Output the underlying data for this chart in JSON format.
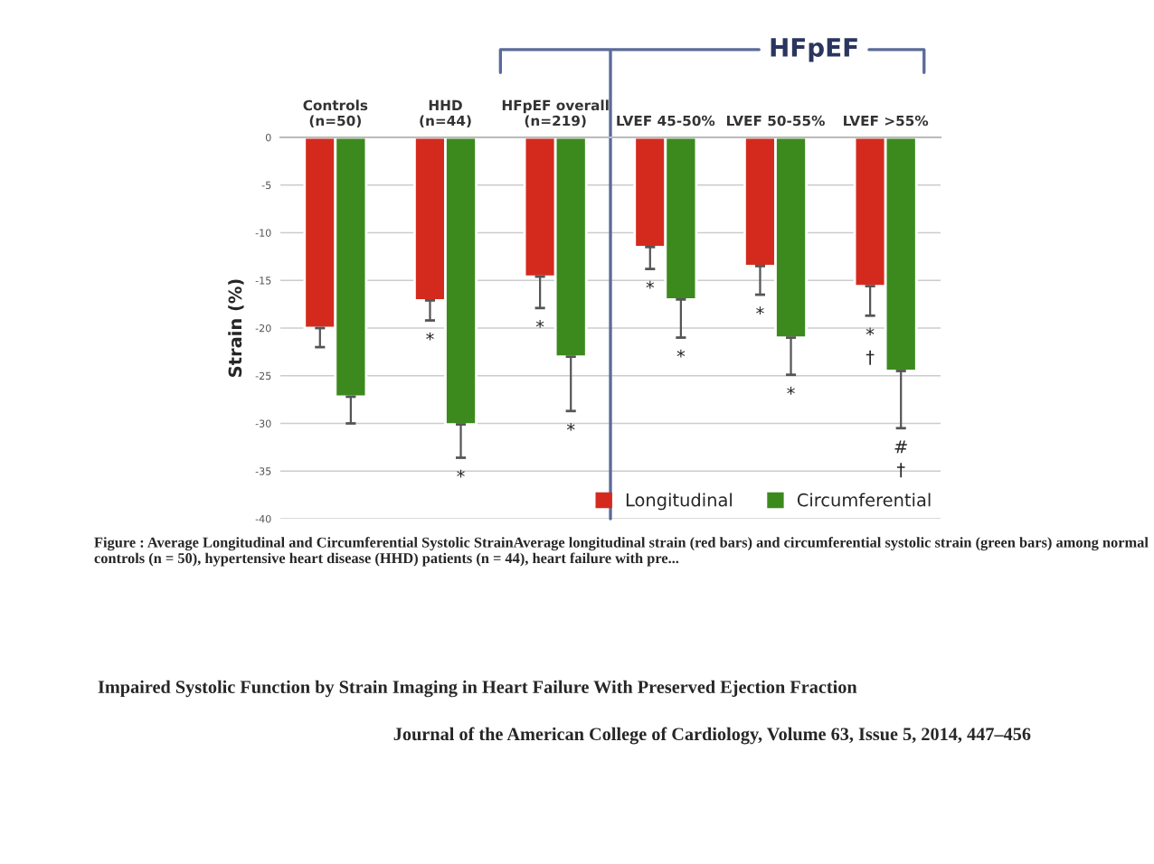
{
  "chart_data": {
    "type": "bar",
    "categories": [
      "Controls\n(n=50)",
      "HHD\n(n=44)",
      "HFpEF overall\n(n=219)",
      "LVEF 45-50%",
      "LVEF 50-55%",
      "LVEF >55%"
    ],
    "series": [
      {
        "name": "Longitudinal",
        "color": "#d42a1e",
        "values": [
          -20,
          -17.1,
          -14.6,
          -11.5,
          -13.5,
          -15.6
        ],
        "errors": [
          [
            -22,
            -20
          ],
          [
            -19.2,
            -17.1
          ],
          [
            -17.9,
            -14.6
          ],
          [
            -13.8,
            -11.5
          ],
          [
            -16.5,
            -13.5
          ],
          [
            -18.7,
            -15.6
          ]
        ]
      },
      {
        "name": "Circumferential",
        "color": "#3c8a1e",
        "values": [
          -27.2,
          -30.1,
          -23,
          -17,
          -21,
          -24.5
        ],
        "errors": [
          [
            -30,
            -27.2
          ],
          [
            -33.6,
            -30.1
          ],
          [
            -28.7,
            -23
          ],
          [
            -21,
            -17
          ],
          [
            -24.9,
            -21
          ],
          [
            -30.5,
            -24.5
          ]
        ]
      }
    ],
    "ylabel": "Strain (%)",
    "ylim": [
      -40,
      0
    ],
    "yticks": [
      -40,
      -35,
      -30,
      -25,
      -20,
      -15,
      -10,
      -5,
      0
    ],
    "grid": "y",
    "legend": "bottom right",
    "annotations": [
      "*",
      "*",
      "*",
      "*",
      "*",
      "*",
      "*",
      "*",
      "*",
      "†",
      "#",
      "†",
      "HFpEF",
      "Figure : Average Longitudinal and Circumferential Systolic StrainAverage longitudinal strain (red bars) and circumferential systolic strain (green bars) among normal controls (n = 50), hypertensive heart disease (HHD) patients (n = 44), heart failure with pre...",
      "Impaired Systolic Function by Strain Imaging in Heart Failure With Preserved Ejection Fraction",
      "Journal of the American College of Cardiology, Volume 63, Issue 5, 2014, 447–456"
    ]
  }
}
